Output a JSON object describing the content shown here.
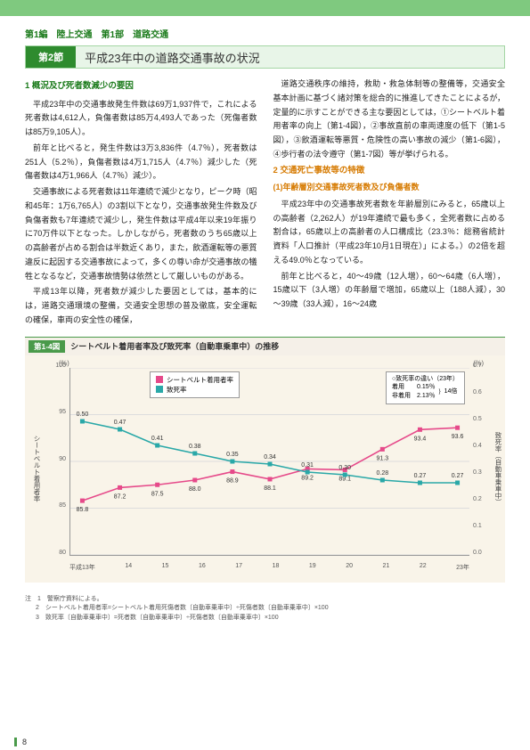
{
  "header_bar_color": "#7fc97f",
  "breadcrumb": "第1編　陸上交通　第1部　道路交通",
  "section": {
    "badge": "第2節",
    "title": "平成23年中の道路交通事故の状況"
  },
  "left": {
    "subhead1": "1 概況及び死者数減少の要因",
    "p1": "平成23年中の交通事故発生件数は69万1,937件で，これによる死者数は4,612人，負傷者数は85万4,493人であった（死傷者数は85万9,105人）。",
    "p2": "前年と比べると，発生件数は3万3,836件（4.7％），死者数は251人（5.2％），負傷者数は4万1,715人（4.7％）減少した（死傷者数は4万1,966人（4.7％）減少）。",
    "p3": "交通事故による死者数は11年連続で減少となり，ピーク時（昭和45年：1万6,765人）の3割以下となり，交通事故発生件数及び負傷者数も7年連続で減少し，発生件数は平成4年以来19年振りに70万件以下となった。しかしながら，死者数のうち65歳以上の高齢者が占める割合は半数近くあり，また，飲酒運転等の悪質違反に起因する交通事故によって，多くの尊い命が交通事故の犠牲となるなど，交通事故情勢は依然として厳しいものがある。",
    "p4": "平成13年以降，死者数が減少した要因としては，基本的には，道路交通環境の整備，交通安全思想の普及徹底，安全運転の確保，車両の安全性の確保，"
  },
  "right": {
    "p1": "道路交通秩序の維持，救助・救急体制等の整備等，交通安全基本計画に基づく諸対策を総合的に推進してきたことによるが，定量的に示すことができる主な要因としては，①シートベルト着用者率の向上（第1-4図），②事故直前の車両速度の低下（第1-5図），③飲酒運転等悪質・危険性の高い事故の減少（第1-6図），④歩行者の法令遵守（第1-7図）等が挙げられる。",
    "subhead2": "2 交通死亡事故等の特徴",
    "sub2a": "(1)年齢層別交通事故死者数及び負傷者数",
    "p2": "平成23年中の交通事故死者数を年齢層別にみると，65歳以上の高齢者（2,262人）が19年連続で最も多く，全死者数に占める割合は，65歳以上の高齢者の人口構成比（23.3％：総務省統計資料「人口推計（平成23年10月1日現在）」による。）の2倍を超える49.0％となっている。",
    "p3": "前年と比べると，40～49歳（12人増），60～64歳（6人増），15歳以下（3人増）の年齢層で増加，65歳以上（188人減），30～39歳（33人減），16～24歳"
  },
  "chart": {
    "tag": "第1-4図",
    "caption": "シートベルト着用者率及び致死率（自動車乗車中）の推移",
    "y_left_unit": "(％)",
    "y_right_unit": "(％)",
    "y_left_label": "シートベルト着用者率",
    "y_right_label": "致死率（自動車乗車中）",
    "y_left_min": 80,
    "y_left_max": 100,
    "y_left_step": 5,
    "y_right_min": 0,
    "y_right_max": 0.7,
    "y_right_step": 0.1,
    "legend": {
      "s1": {
        "label": "シートベルト着用者率",
        "color": "#e64a8a"
      },
      "s2": {
        "label": "致死率",
        "color": "#2aa8a8"
      }
    },
    "note": {
      "title": "○致死率の違い（23年）",
      "row1": "着用　　0.15％",
      "row2": "非着用　2.13％",
      "ratio": "14倍"
    },
    "x_labels": [
      "平成13年",
      "14",
      "15",
      "16",
      "17",
      "18",
      "19",
      "20",
      "21",
      "22",
      "23年"
    ],
    "s1_values": [
      85.8,
      87.2,
      87.5,
      88.0,
      88.9,
      88.1,
      89.2,
      89.1,
      91.3,
      93.4,
      93.6
    ],
    "s2_values": [
      0.5,
      0.47,
      0.41,
      0.38,
      0.35,
      0.34,
      0.31,
      0.3,
      0.28,
      0.27,
      0.27
    ]
  },
  "footnotes": {
    "head": "注　1　警察庁資料による。",
    "f2": "2　シートベルト着用者率=シートベルト着用死傷者数〔自動車乗車中〕÷死傷者数〔自動車乗車中〕×100",
    "f3": "3　致死率〔自動車乗車中〕=死者数〔自動車乗車中〕÷死傷者数〔自動車乗車中〕×100"
  },
  "page_number": "8"
}
